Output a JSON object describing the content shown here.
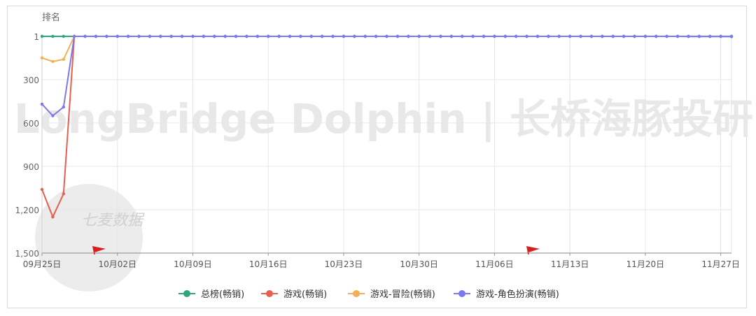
{
  "chart_data": {
    "type": "line",
    "ylabel": "排名",
    "y_inverted": true,
    "ylim": [
      1,
      1500
    ],
    "yticks": [
      1,
      300,
      600,
      900,
      1200,
      1500
    ],
    "ytick_labels": [
      "1",
      "300",
      "600",
      "900",
      "1,200",
      "1,500"
    ],
    "xtick_labels": [
      "09月25日",
      "10月02日",
      "10月09日",
      "10月16日",
      "10月23日",
      "10月30日",
      "11月06日",
      "11月13日",
      "11月20日",
      "11月27日"
    ],
    "x_start_date": "09月25日",
    "grid": true,
    "legend_position": "bottom",
    "watermark": "LongBridge Dolphin | 长桥海豚投研",
    "logo_text": "七麦数据",
    "series": [
      {
        "name": "总榜(畅销)",
        "color": "#2ea57a",
        "values": [
          1,
          1,
          1,
          1,
          1,
          1,
          1,
          1,
          1,
          1,
          1,
          1,
          1,
          1,
          1,
          1,
          1,
          1,
          1,
          1,
          1,
          1,
          1,
          1,
          1,
          1,
          1,
          1,
          1,
          1,
          1,
          1,
          1,
          1,
          1,
          1,
          1,
          1,
          1,
          1,
          1,
          1,
          1,
          1,
          1,
          1,
          1,
          1,
          1,
          1,
          1,
          1,
          1,
          1,
          1,
          1,
          1,
          1,
          1,
          1,
          2,
          2,
          2,
          2,
          3
        ]
      },
      {
        "name": "游戏(畅销)",
        "color": "#e5604e",
        "values": [
          1060,
          1250,
          1090,
          1,
          1,
          1,
          1,
          1,
          1,
          1,
          1,
          1,
          1,
          1,
          1,
          1,
          1,
          1,
          1,
          1,
          1,
          1,
          1,
          1,
          1,
          1,
          1,
          1,
          1,
          1,
          1,
          1,
          1,
          1,
          1,
          1,
          1,
          1,
          1,
          1,
          1,
          1,
          1,
          1,
          1,
          1,
          1,
          1,
          1,
          1,
          1,
          1,
          1,
          1,
          1,
          1,
          1,
          1,
          1,
          1,
          1,
          1,
          1,
          1,
          1
        ]
      },
      {
        "name": "游戏-冒险(畅销)",
        "color": "#f3ae57",
        "values": [
          150,
          175,
          160,
          1,
          1,
          1,
          1,
          1,
          1,
          1,
          1,
          1,
          1,
          1,
          1,
          1,
          1,
          1,
          1,
          1,
          1,
          1,
          1,
          1,
          1,
          1,
          1,
          1,
          1,
          1,
          1,
          1,
          1,
          1,
          1,
          1,
          1,
          1,
          1,
          1,
          1,
          1,
          1,
          1,
          1,
          1,
          1,
          1,
          1,
          1,
          1,
          1,
          1,
          1,
          1,
          1,
          1,
          1,
          1,
          1,
          1,
          1,
          1,
          1,
          1
        ]
      },
      {
        "name": "游戏-角色扮演(畅销)",
        "color": "#7b78ee",
        "values": [
          470,
          550,
          490,
          1,
          1,
          1,
          1,
          1,
          1,
          1,
          1,
          1,
          1,
          1,
          1,
          1,
          1,
          1,
          1,
          1,
          1,
          1,
          1,
          1,
          1,
          1,
          1,
          1,
          1,
          1,
          1,
          1,
          1,
          1,
          1,
          1,
          1,
          1,
          1,
          1,
          1,
          1,
          1,
          1,
          1,
          1,
          1,
          1,
          1,
          1,
          1,
          1,
          1,
          1,
          1,
          1,
          1,
          1,
          1,
          1,
          1,
          1,
          1,
          1,
          1
        ]
      }
    ]
  }
}
